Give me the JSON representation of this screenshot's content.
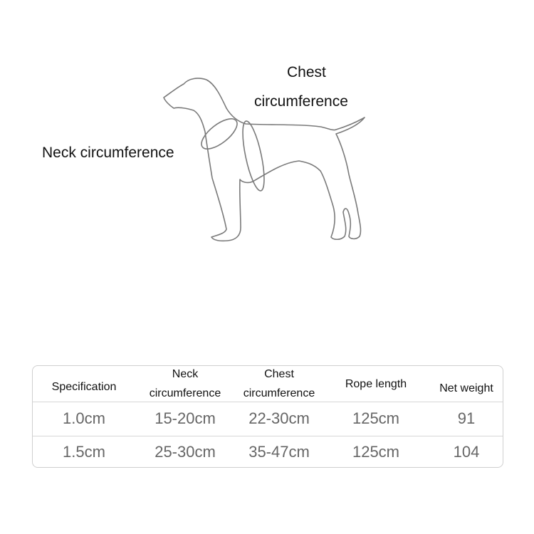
{
  "diagram": {
    "labels": {
      "chest_line1": "Chest",
      "chest_line2": "circumference",
      "neck": "Neck circumference"
    },
    "figure": "dog-outline"
  },
  "table": {
    "headers": [
      {
        "line1": "Specification",
        "line2": ""
      },
      {
        "line1": "Neck",
        "line2": "circumference"
      },
      {
        "line1": "Chest",
        "line2": "circumference"
      },
      {
        "line1": "Rope length",
        "line2": ""
      },
      {
        "line1": "Net weight",
        "line2": ""
      }
    ],
    "rows": [
      [
        "1.0cm",
        "15-20cm",
        "22-30cm",
        "125cm",
        "91"
      ],
      [
        "1.5cm",
        "25-30cm",
        "35-47cm",
        "125cm",
        "104"
      ]
    ]
  }
}
